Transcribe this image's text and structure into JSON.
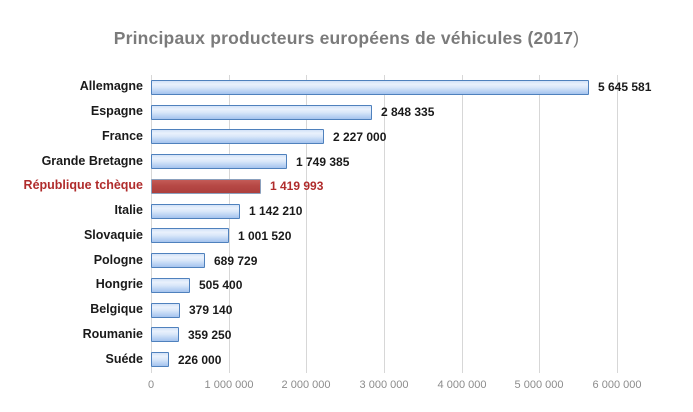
{
  "chart_data": {
    "type": "bar",
    "orientation": "horizontal",
    "title": "Principaux producteurs européens de véhicules (2017)",
    "title_parts": {
      "bold": "Principaux producteurs européens de véhicules (2017",
      "regular": ")"
    },
    "categories": [
      "Allemagne",
      "Espagne",
      "France",
      "Grande Bretagne",
      "République tchèque",
      "Italie",
      "Slovaquie",
      "Pologne",
      "Hongrie",
      "Belgique",
      "Roumanie",
      "Suéde"
    ],
    "values": [
      5645581,
      2848335,
      2227000,
      1749385,
      1419993,
      1142210,
      1001520,
      689729,
      505400,
      379140,
      359250,
      226000
    ],
    "value_labels": [
      "5 645 581",
      "2 848 335",
      "2 227 000",
      "1 749 385",
      "1 419 993",
      "1 142 210",
      "1 001 520",
      "689 729",
      "505 400",
      "379 140",
      "359 250",
      "226 000"
    ],
    "highlight_index": 4,
    "highlight_category": "République tchèque",
    "x_ticks": [
      "0",
      "1 000 000",
      "2 000 000",
      "3 000 000",
      "4 000 000",
      "5 000 000",
      "6 000 000"
    ],
    "x_min": 0,
    "x_max": 6000000,
    "x_tick_interval": 1000000,
    "grid": "vertical-only",
    "legend": "none",
    "xlabel": "",
    "ylabel": ""
  },
  "colors": {
    "title_text": "#7b7b7b",
    "bar_fill_top": "#d3e2f7",
    "bar_fill_light": "#e9f1fc",
    "bar_fill_bottom": "#a5c3ec",
    "bar_border": "#4f81bd",
    "highlight_fill_top": "#c35b57",
    "highlight_fill_bottom": "#ad3f3d",
    "highlight_border": "#8ba0bd",
    "highlight_text": "#b02c2c",
    "category_text": "#1a1a1a",
    "value_text": "#1a1a1a",
    "axis_tick_text": "#8c8c8c",
    "gridline": "#d7d7d7"
  }
}
